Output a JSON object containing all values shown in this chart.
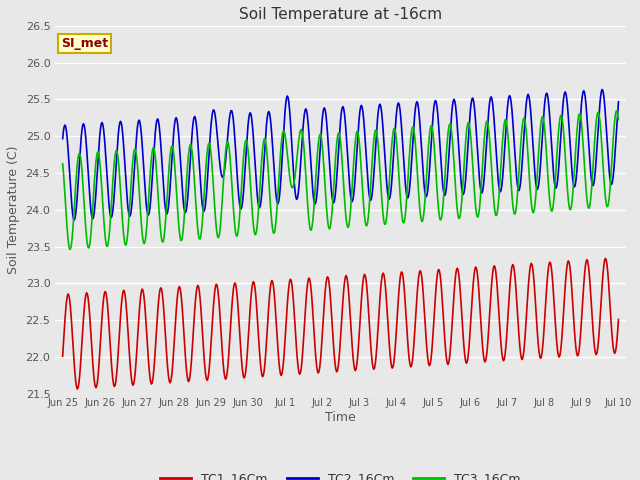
{
  "title": "Soil Temperature at -16cm",
  "xlabel": "Time",
  "ylabel": "Soil Temperature (C)",
  "ylim": [
    21.5,
    26.5
  ],
  "annotation_text": "SI_met",
  "annotation_bg": "#ffffcc",
  "annotation_border": "#ccaa00",
  "annotation_text_color": "#880000",
  "bg_color": "#e8e8e8",
  "grid_color": "#ffffff",
  "line_colors": {
    "TC1": "#cc0000",
    "TC2": "#0000cc",
    "TC3": "#00bb00"
  },
  "legend_labels": [
    "TC1_16Cm",
    "TC2_16Cm",
    "TC3_16Cm"
  ],
  "xtick_labels": [
    "Jun 25",
    "Jun 26",
    "Jun 27",
    "Jun 28",
    "Jun 29",
    "Jun 30",
    "Jul 1",
    "Jul 2",
    "Jul 3",
    "Jul 4",
    "Jul 5",
    "Jul 6",
    "Jul 7",
    "Jul 8",
    "Jul 9",
    "Jul 10"
  ],
  "ytick_values": [
    21.5,
    22.0,
    22.5,
    23.0,
    23.5,
    24.0,
    24.5,
    25.0,
    25.5,
    26.0,
    26.5
  ],
  "num_points": 721
}
